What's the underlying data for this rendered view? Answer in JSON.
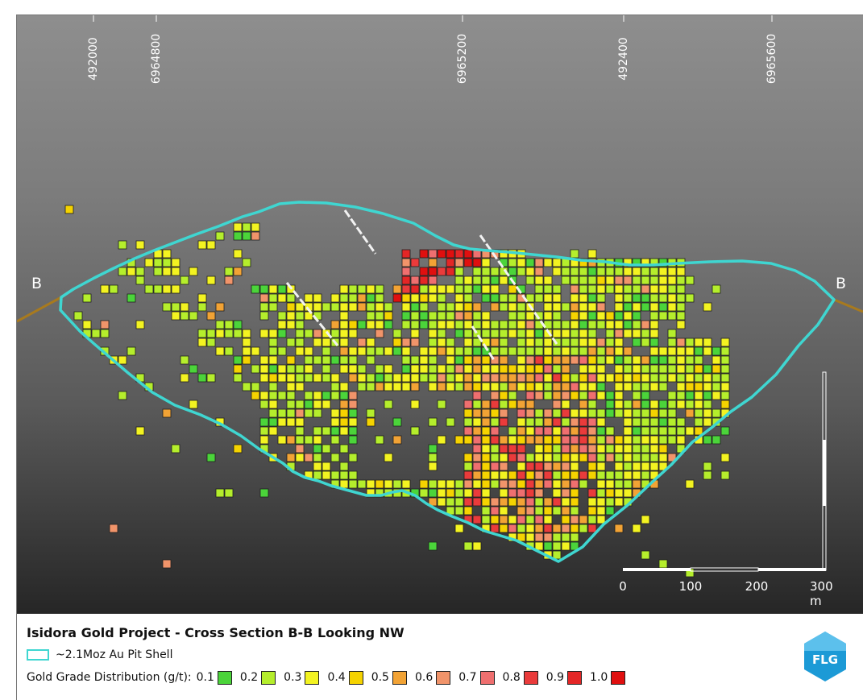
{
  "coordinates": [
    "492000",
    "6964800",
    "6965200",
    "492400",
    "6965600"
  ],
  "section_ends": {
    "left": "B",
    "right": "B"
  },
  "scale_bar": {
    "labels": [
      "0",
      "100",
      "200",
      "300 m"
    ]
  },
  "legend": {
    "title": "Isidora Gold Project - Cross Section B-B Looking NW",
    "shell_label": "~2.1Moz Au Pit Shell",
    "shell_color": "#3fd6d1",
    "grade_label": "Gold Grade Distribution (g/t):",
    "grades": [
      {
        "value": "0.1",
        "color": "#4bd43a"
      },
      {
        "value": "0.2",
        "color": "#b5ee2c"
      },
      {
        "value": "0.3",
        "color": "#f3f321"
      },
      {
        "value": "0.4",
        "color": "#f5d300"
      },
      {
        "value": "0.5",
        "color": "#f2a335"
      },
      {
        "value": "0.6",
        "color": "#f1946a"
      },
      {
        "value": "0.7",
        "color": "#ef6f6f"
      },
      {
        "value": "0.8",
        "color": "#ea3b3b"
      },
      {
        "value": "0.9",
        "color": "#e42626"
      },
      {
        "value": "1.0",
        "color": "#e00f0f"
      }
    ]
  },
  "logo": {
    "text": "FLG",
    "color": "#1c9ad6"
  }
}
